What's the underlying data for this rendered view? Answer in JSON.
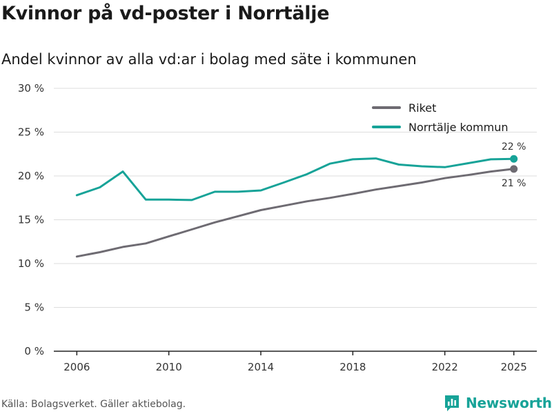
{
  "title": "Kvinnor på vd-poster i Norrtälje",
  "subtitle": "Andel kvinnor av alla vd:ar i bolag med säte i kommunen",
  "source": "Källa: Bolagsverket. Gäller aktiebolag.",
  "brand": "Newsworthy",
  "colors": {
    "riket": "#6e6b72",
    "norrtalje": "#17a398",
    "grid": "#dddddd",
    "axis": "#222222",
    "brand": "#17a398"
  },
  "chart_data": {
    "type": "line",
    "title": "Kvinnor på vd-poster i Norrtälje",
    "subtitle": "Andel kvinnor av alla vd:ar i bolag med säte i kommunen",
    "xlabel": "",
    "ylabel": "",
    "xlim": [
      2005,
      2026
    ],
    "ylim": [
      0,
      30
    ],
    "x_ticks": [
      2006,
      2010,
      2014,
      2018,
      2022,
      2025
    ],
    "y_ticks": [
      0,
      5,
      10,
      15,
      20,
      25,
      30
    ],
    "y_tick_labels": [
      "0 %",
      "5 %",
      "10 %",
      "15 %",
      "20 %",
      "25 %",
      "30 %"
    ],
    "legend_position": "top-right",
    "grid": true,
    "x": [
      2006,
      2007,
      2008,
      2009,
      2010,
      2011,
      2012,
      2013,
      2014,
      2015,
      2016,
      2017,
      2018,
      2019,
      2020,
      2021,
      2022,
      2023,
      2024,
      2025
    ],
    "series": [
      {
        "name": "Riket",
        "color": "#6e6b72",
        "values": [
          10.8,
          11.3,
          11.9,
          12.3,
          13.1,
          13.9,
          14.7,
          15.4,
          16.1,
          16.6,
          17.1,
          17.5,
          17.95,
          18.45,
          18.85,
          19.25,
          19.75,
          20.1,
          20.5,
          20.8
        ],
        "end_label": "21 %"
      },
      {
        "name": "Norrtälje kommun",
        "color": "#17a398",
        "values": [
          17.8,
          18.7,
          20.5,
          17.3,
          17.3,
          17.25,
          18.2,
          18.2,
          18.35,
          19.25,
          20.2,
          21.4,
          21.9,
          22.0,
          21.3,
          21.1,
          21.0,
          21.45,
          21.9,
          21.95
        ],
        "end_label": "22 %"
      }
    ]
  }
}
